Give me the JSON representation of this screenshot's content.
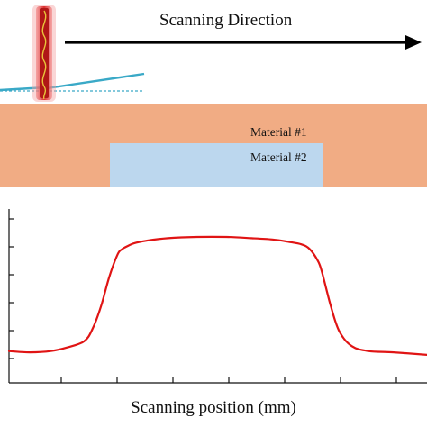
{
  "diagram": {
    "direction_label": "Scanning Direction",
    "material1_label": "Material #1",
    "material2_label": "Material #2",
    "xlabel": "Scanning position (mm)",
    "colors": {
      "material1": "#f1ac84",
      "material2": "#bcd7ee",
      "probe_glow": "#e64a4a",
      "probe_core": "#b01717",
      "probe_wave": "#e8c43a",
      "beam": "#3aa9c7",
      "signal": "#e01414",
      "axis": "#111111",
      "arrow": "#000000"
    },
    "icons": [
      "probe-icon",
      "arrow-right-icon"
    ]
  },
  "chart_data": {
    "type": "line",
    "title": "",
    "xlabel": "Scanning position (mm)",
    "ylabel": "",
    "grid": false,
    "x_ticks": 7,
    "y_ticks": 6,
    "series": [
      {
        "values_note_removed": true,
        "x": [
          0.0,
          0.05,
          0.1,
          0.14,
          0.18,
          0.2,
          0.22,
          0.24,
          0.26,
          0.27,
          0.28,
          0.3,
          0.33,
          0.38,
          0.45,
          0.52,
          0.58,
          0.63,
          0.67,
          0.7,
          0.72,
          0.74,
          0.75,
          0.77,
          0.79,
          0.82,
          0.86,
          0.92,
          1.0
        ],
        "y": [
          0.06,
          0.05,
          0.06,
          0.09,
          0.14,
          0.24,
          0.42,
          0.66,
          0.84,
          0.88,
          0.9,
          0.93,
          0.95,
          0.97,
          0.98,
          0.98,
          0.97,
          0.96,
          0.94,
          0.92,
          0.88,
          0.78,
          0.68,
          0.42,
          0.22,
          0.1,
          0.06,
          0.05,
          0.03
        ]
      }
    ]
  }
}
